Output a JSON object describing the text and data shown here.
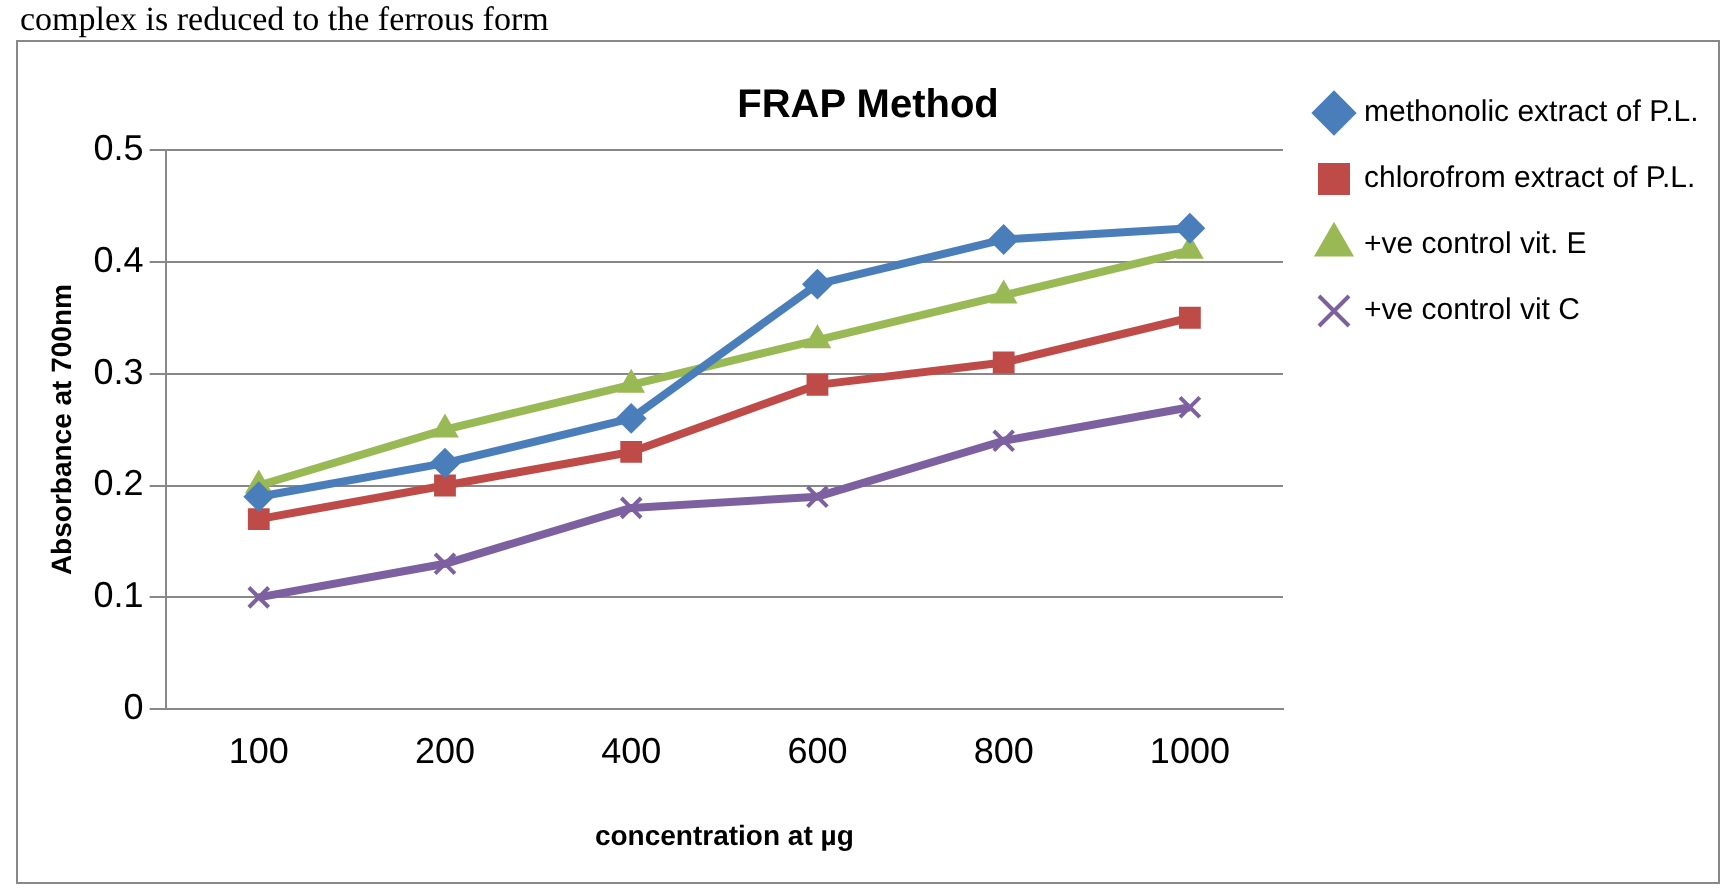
{
  "chart_data": {
    "type": "line",
    "title": "FRAP Method",
    "xlabel": "concentration at µg",
    "ylabel": "Absorbance at 700nm",
    "annotations": [
      "complex is reduced to the ferrous form"
    ],
    "categories": [
      "100",
      "200",
      "400",
      "600",
      "800",
      "1000"
    ],
    "series": [
      {
        "name": "methonolic extract of P.L.",
        "color": "#4a7ebb",
        "marker": "diamond",
        "values": [
          0.19,
          0.22,
          0.26,
          0.38,
          0.42,
          0.43
        ]
      },
      {
        "name": "chlorofrom extract of P.L.",
        "color": "#be4b48",
        "marker": "square",
        "values": [
          0.17,
          0.2,
          0.23,
          0.29,
          0.31,
          0.35
        ]
      },
      {
        "name": "+ve control vit. E",
        "color": "#98b954",
        "marker": "triangle",
        "values": [
          0.2,
          0.25,
          0.29,
          0.33,
          0.37,
          0.41
        ]
      },
      {
        "name": "+ve control vit C",
        "color": "#7d60a0",
        "marker": "cross",
        "values": [
          0.1,
          0.13,
          0.18,
          0.19,
          0.24,
          0.27
        ]
      }
    ],
    "ylim": [
      0,
      0.5
    ],
    "yticks": [
      0,
      0.1,
      0.2,
      0.3,
      0.4,
      0.5
    ],
    "grid": "y",
    "legend": "right"
  }
}
